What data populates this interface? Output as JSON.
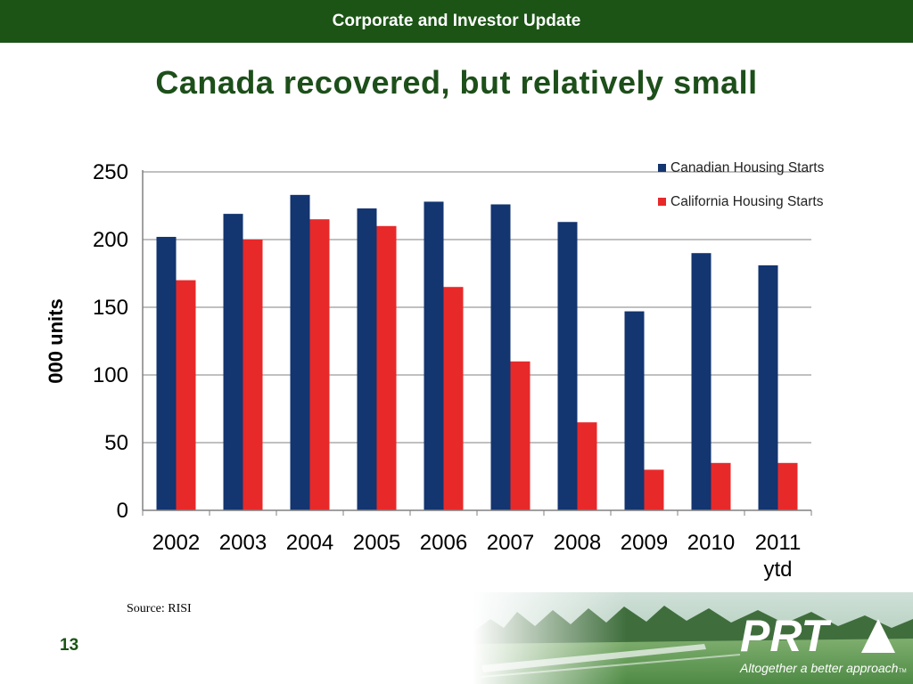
{
  "header": {
    "title": "Corporate and Investor Update"
  },
  "slide": {
    "title": "Canada recovered, but relatively small",
    "source": "Source: RISI",
    "page_number": "13"
  },
  "logo": {
    "name": "PRT",
    "tagline": "Altogether a better approach",
    "trademark": "TM"
  },
  "colors": {
    "header_bg": "#1b5415",
    "title_text": "#1d4f1a",
    "canadian": "#133570",
    "california": "#e8292a"
  },
  "chart_data": {
    "type": "bar",
    "categories": [
      "2002",
      "2003",
      "2004",
      "2005",
      "2006",
      "2007",
      "2008",
      "2009",
      "2010",
      "2011\nytd"
    ],
    "series": [
      {
        "name": "Canadian Housing Starts",
        "color": "#133570",
        "values": [
          202,
          219,
          233,
          223,
          228,
          226,
          213,
          147,
          190,
          181
        ]
      },
      {
        "name": "California Housing Starts",
        "color": "#e8292a",
        "values": [
          170,
          200,
          215,
          210,
          165,
          110,
          65,
          30,
          35,
          35
        ]
      }
    ],
    "title": "",
    "xlabel": "",
    "ylabel": "000 units",
    "ylim": [
      0,
      250
    ],
    "yticks": [
      0,
      50,
      100,
      150,
      200,
      250
    ],
    "grid": true,
    "legend_position": "top-right"
  }
}
